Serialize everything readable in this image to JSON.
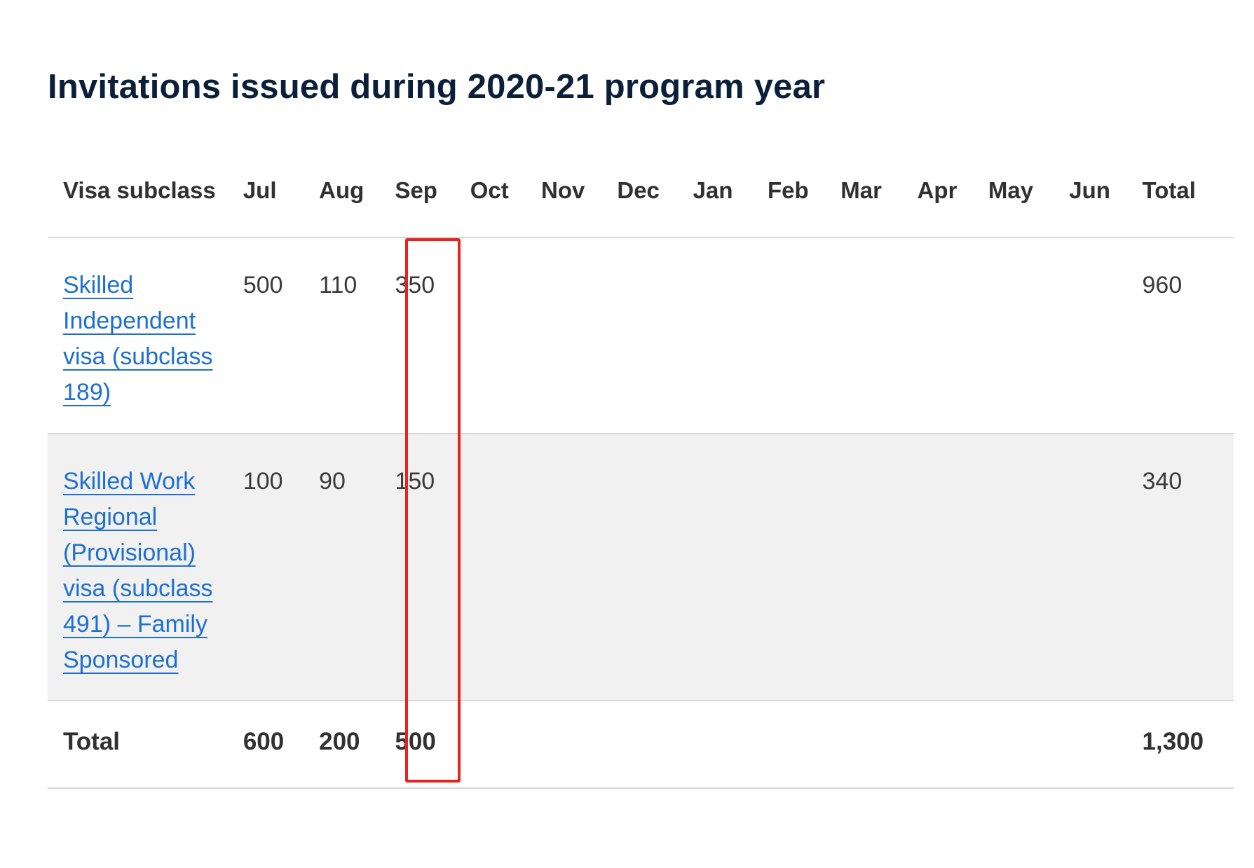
{
  "title": "Invitations issued during 2020-21 program year",
  "table": {
    "headers": [
      "Visa subclass",
      "Jul",
      "Aug",
      "Sep",
      "Oct",
      "Nov",
      "Dec",
      "Jan",
      "Feb",
      "Mar",
      "Apr",
      "May",
      "Jun",
      "Total"
    ],
    "rows": [
      {
        "visa": "Skilled Independent visa (subclass 189)",
        "values": [
          "500",
          "110",
          "350",
          "",
          "",
          "",
          "",
          "",
          "",
          "",
          "",
          ""
        ],
        "total": "960"
      },
      {
        "visa": "Skilled Work Regional (Provisional) visa (subclass 491) – Family Sponsored",
        "values": [
          "100",
          "90",
          "150",
          "",
          "",
          "",
          "",
          "",
          "",
          "",
          "",
          ""
        ],
        "total": "340"
      }
    ],
    "footer": {
      "label": "Total",
      "values": [
        "600",
        "200",
        "500",
        "",
        "",
        "",
        "",
        "",
        "",
        "",
        "",
        ""
      ],
      "total": "1,300"
    }
  },
  "highlight": {
    "column": "Sep",
    "color": "#e8231f"
  },
  "colors": {
    "link": "#1d6fd1",
    "title": "#0b1f3a",
    "row_shade": "#f1f1f1"
  }
}
